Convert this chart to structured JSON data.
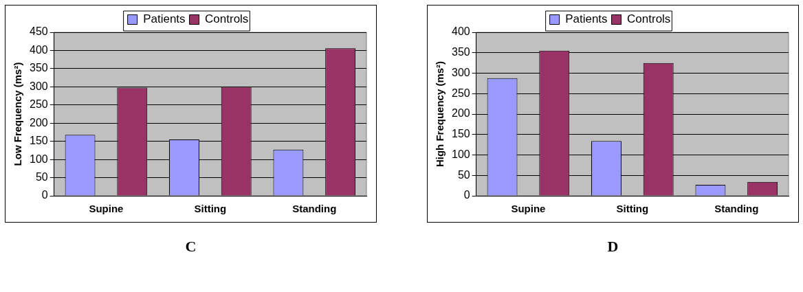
{
  "chart_data": [
    {
      "type": "bar",
      "ylabel": "Low Frequency (ms²)",
      "categories": [
        "Supine",
        "Sitting",
        "Standing"
      ],
      "series": [
        {
          "name": "Patients",
          "color": "#9999ff",
          "values": [
            168,
            155,
            127
          ]
        },
        {
          "name": "Controls",
          "color": "#993366",
          "values": [
            298,
            300,
            406
          ]
        }
      ],
      "ylim": [
        0,
        450
      ],
      "yticks": [
        0,
        50,
        100,
        150,
        200,
        250,
        300,
        350,
        400,
        450
      ],
      "grid": "y",
      "legend": "top",
      "annotations": [
        "C"
      ]
    },
    {
      "type": "bar",
      "ylabel": "High Frequency (ms²)",
      "categories": [
        "Supine",
        "Sitting",
        "Standing"
      ],
      "series": [
        {
          "name": "Patients",
          "color": "#9999ff",
          "values": [
            288,
            134,
            27
          ]
        },
        {
          "name": "Controls",
          "color": "#993366",
          "values": [
            355,
            325,
            34
          ]
        }
      ],
      "ylim": [
        0,
        400
      ],
      "yticks": [
        0,
        50,
        100,
        150,
        200,
        250,
        300,
        350,
        400
      ],
      "grid": "y",
      "legend": "top",
      "annotations": [
        "D"
      ]
    }
  ]
}
